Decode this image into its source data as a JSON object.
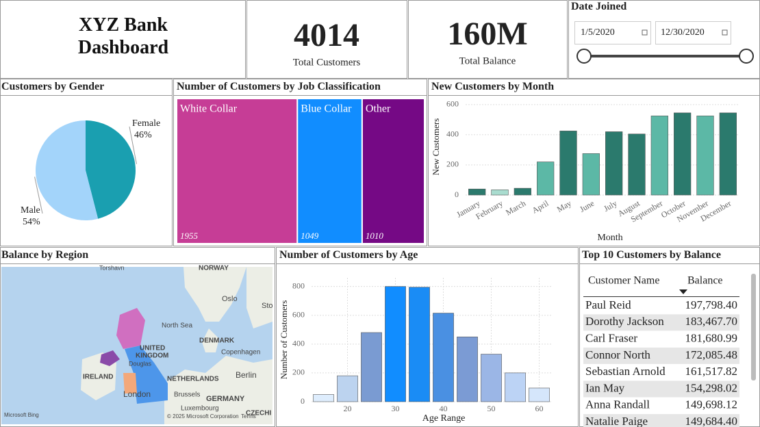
{
  "header": {
    "title": "XYZ Bank Dashboard"
  },
  "kpis": [
    {
      "value": 4014,
      "label": "Total Customers"
    },
    {
      "value": "160M",
      "label": "Total Balance"
    }
  ],
  "date_filter": {
    "title": "Date Joined",
    "start": "1/5/2020",
    "end": "12/30/2020"
  },
  "chart_data": [
    {
      "type": "pie",
      "title": "Customers by Gender",
      "categories": [
        "Female",
        "Male"
      ],
      "values": [
        46,
        54
      ],
      "value_labels": [
        "46%",
        "54%"
      ],
      "colors": [
        "#1a9fb0",
        "#a3d4fa"
      ]
    },
    {
      "type": "treemap",
      "title": "Number of Customers by Job Classification",
      "categories": [
        "White Collar",
        "Blue Collar",
        "Other"
      ],
      "values": [
        1955,
        1049,
        1010
      ],
      "colors": [
        "#c63d96",
        "#118dff",
        "#750985"
      ]
    },
    {
      "type": "bar",
      "title": "New Customers by Month",
      "x_label": "Month",
      "y_label": "New Customers",
      "categories": [
        "January",
        "February",
        "March",
        "April",
        "May",
        "June",
        "July",
        "August",
        "September",
        "October",
        "November",
        "December"
      ],
      "values": [
        40,
        35,
        45,
        220,
        425,
        275,
        420,
        405,
        525,
        545,
        525,
        545
      ],
      "colors": [
        "#2b7a6d",
        "#a9dccf",
        "#2b7a6d",
        "#5cb8a6",
        "#2b7a6d",
        "#5cb8a6",
        "#2b7a6d",
        "#2b7a6d",
        "#5cb8a6",
        "#2b7a6d",
        "#5cb8a6",
        "#2b7a6d"
      ],
      "ylim": [
        0,
        640
      ],
      "yticks": [
        0,
        200,
        400,
        600
      ],
      "grid": true
    },
    {
      "type": "bar",
      "title": "Number of Customers by Age",
      "x_label": "Age Range",
      "y_label": "Number of Customers",
      "x": [
        15,
        20,
        25,
        30,
        35,
        40,
        45,
        50,
        55,
        60
      ],
      "values": [
        50,
        180,
        480,
        800,
        795,
        615,
        450,
        330,
        200,
        95
      ],
      "colors": [
        "#deedfd",
        "#bcd3ef",
        "#7a9bd2",
        "#118dff",
        "#1a8cf5",
        "#4a90e2",
        "#7b9bd4",
        "#9bb6e6",
        "#bcd3f5",
        "#d5e6fb"
      ],
      "xlim": [
        12.5,
        62.5
      ],
      "xticks": [
        20,
        30,
        40,
        50,
        60
      ],
      "ylim": [
        0,
        860
      ],
      "yticks": [
        0,
        200,
        400,
        600,
        800
      ],
      "grid": true
    }
  ],
  "map": {
    "title": "Balance by Region",
    "labels": [
      "Torshavn",
      "NORWAY",
      "Oslo",
      "Sto",
      "North Sea",
      "DENMARK",
      "Copenhagen",
      "UNITED",
      "KINGDOM",
      "Douglas",
      "IRELAND",
      "NETHERLANDS",
      "Berlin",
      "London",
      "Brussels",
      "GERMANY",
      "Luxembourg",
      "CZECHI",
      "Microsoft Bing",
      "© 2025 Microsoft Corporation",
      "Terms"
    ]
  },
  "table": {
    "title": "Top 10 Customers by Balance",
    "columns": [
      "Customer Name",
      "Balance"
    ],
    "rows": [
      [
        "Paul Reid",
        "197,798.40"
      ],
      [
        "Dorothy Jackson",
        "183,467.70"
      ],
      [
        "Carl Fraser",
        "181,680.99"
      ],
      [
        "Connor North",
        "172,085.48"
      ],
      [
        "Sebastian Arnold",
        "161,517.82"
      ],
      [
        "Ian May",
        "154,298.02"
      ],
      [
        "Anna Randall",
        "149,698.12"
      ],
      [
        "Natalie Paige",
        "149,684.40"
      ]
    ]
  }
}
